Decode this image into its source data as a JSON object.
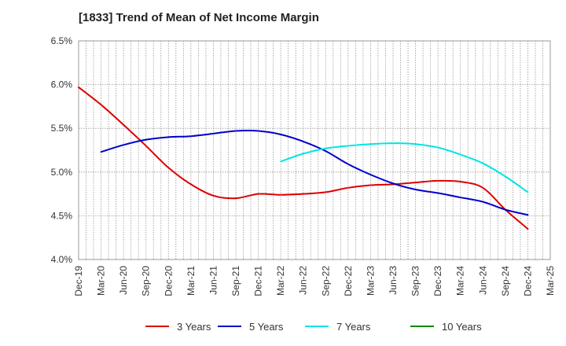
{
  "chart_data": {
    "type": "line",
    "title": "[1833]  Trend of Mean of Net Income Margin",
    "xlabel": "",
    "ylabel": "",
    "x_tick_labels": [
      "Dec-19",
      "Mar-20",
      "Jun-20",
      "Sep-20",
      "Dec-20",
      "Mar-21",
      "Jun-21",
      "Sep-21",
      "Dec-21",
      "Mar-22",
      "Jun-22",
      "Sep-22",
      "Dec-22",
      "Mar-23",
      "Jun-23",
      "Sep-23",
      "Dec-23",
      "Mar-24",
      "Jun-24",
      "Sep-24",
      "Dec-24",
      "Mar-25"
    ],
    "y_tick_labels": [
      "6.5%",
      "6.0%",
      "5.5%",
      "5.0%",
      "4.5%",
      "4.0%"
    ],
    "ylim": [
      4.0,
      6.5
    ],
    "grid": true,
    "legend_position": "bottom",
    "series": [
      {
        "name": "3 Years",
        "color": "#dd0000",
        "values": [
          5.97,
          5.77,
          5.54,
          5.3,
          5.05,
          4.86,
          4.73,
          4.7,
          4.75,
          4.74,
          4.75,
          4.77,
          4.82,
          4.85,
          4.86,
          4.88,
          4.9,
          4.89,
          4.82,
          4.57,
          4.35,
          null
        ]
      },
      {
        "name": "5 Years",
        "color": "#0000cc",
        "values": [
          null,
          5.23,
          5.31,
          5.37,
          5.4,
          5.41,
          5.44,
          5.47,
          5.47,
          5.43,
          5.35,
          5.24,
          5.09,
          4.97,
          4.87,
          4.8,
          4.76,
          4.71,
          4.66,
          4.57,
          4.51,
          null
        ]
      },
      {
        "name": "7 Years",
        "color": "#00e5e5",
        "values": [
          null,
          null,
          null,
          null,
          null,
          null,
          null,
          null,
          null,
          5.12,
          5.21,
          5.27,
          5.3,
          5.32,
          5.33,
          5.32,
          5.28,
          5.2,
          5.1,
          4.95,
          4.77,
          null
        ]
      },
      {
        "name": "10 Years",
        "color": "#008800",
        "values": []
      }
    ]
  }
}
